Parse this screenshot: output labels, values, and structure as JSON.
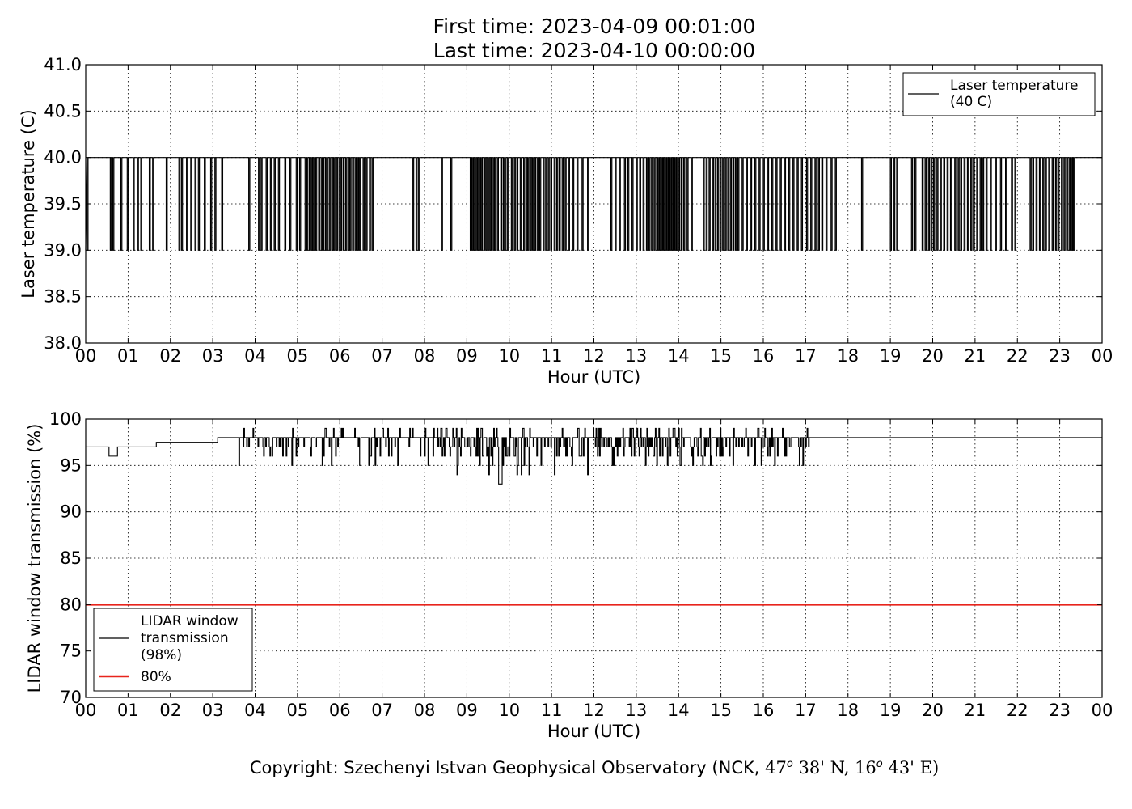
{
  "header": {
    "first_time": "First time: 2023-04-09 00:01:00",
    "last_time": "Last time: 2023-04-10 00:00:00"
  },
  "footer": {
    "copyright_prefix": "Copyright: Szechenyi Istvan Geophysical Observatory (NCK, ",
    "lat_deg": "47",
    "lat_min": "38' N, ",
    "lon_deg": "16",
    "lon_min": "43' E)",
    "degree_mark": "o"
  },
  "chart_data": [
    {
      "type": "line",
      "xlabel": "Hour (UTC)",
      "ylabel": "Laser temperature (C)",
      "xlim": [
        0,
        24
      ],
      "ylim": [
        38.0,
        41.0
      ],
      "x_ticks": [
        "00",
        "01",
        "02",
        "03",
        "04",
        "05",
        "06",
        "07",
        "08",
        "09",
        "10",
        "11",
        "12",
        "13",
        "14",
        "15",
        "16",
        "17",
        "18",
        "19",
        "20",
        "21",
        "22",
        "23",
        "00"
      ],
      "y_ticks": [
        "38.0",
        "38.5",
        "39.0",
        "39.5",
        "40.0",
        "40.5",
        "41.0"
      ],
      "grid": true,
      "legend_placement": "top-right",
      "legend": [
        "Laser temperature",
        "(40 C)"
      ],
      "series": [
        {
          "color": "#000000",
          "baseline": 40.0,
          "dip_value": 39.0,
          "dips_hours": [
            0.03,
            0.58,
            0.64,
            0.83,
            0.98,
            1.12,
            1.22,
            1.3,
            1.5,
            1.58,
            1.9,
            2.2,
            2.26,
            2.38,
            2.48,
            2.58,
            2.66,
            2.8,
            2.95,
            3.05,
            3.21,
            3.85,
            4.08,
            4.14,
            4.26,
            4.36,
            4.45,
            4.55,
            4.7,
            4.82,
            4.97,
            5.05,
            5.18,
            5.22,
            5.28,
            5.33,
            5.38,
            5.43,
            5.5,
            5.56,
            5.6,
            5.66,
            5.7,
            5.76,
            5.82,
            5.86,
            5.92,
            5.98,
            6.02,
            6.08,
            6.14,
            6.2,
            6.24,
            6.3,
            6.36,
            6.42,
            6.46,
            6.55,
            6.62,
            6.7,
            6.76,
            7.72,
            7.8,
            7.86,
            8.4,
            8.62,
            9.08,
            9.12,
            9.16,
            9.2,
            9.25,
            9.3,
            9.34,
            9.4,
            9.45,
            9.5,
            9.55,
            9.62,
            9.66,
            9.72,
            9.8,
            9.86,
            9.9,
            9.96,
            10.05,
            10.12,
            10.18,
            10.26,
            10.34,
            10.4,
            10.44,
            10.5,
            10.55,
            10.6,
            10.66,
            10.72,
            10.8,
            10.86,
            10.92,
            10.98,
            11.06,
            11.12,
            11.18,
            11.25,
            11.32,
            11.4,
            11.5,
            11.6,
            11.72,
            11.85,
            12.4,
            12.5,
            12.6,
            12.72,
            12.8,
            12.9,
            13.0,
            13.08,
            13.16,
            13.24,
            13.3,
            13.36,
            13.42,
            13.48,
            13.52,
            13.56,
            13.6,
            13.64,
            13.68,
            13.72,
            13.76,
            13.8,
            13.84,
            13.88,
            13.92,
            13.96,
            14.0,
            14.06,
            14.12,
            14.2,
            14.3,
            14.58,
            14.65,
            14.72,
            14.8,
            14.86,
            14.92,
            14.98,
            15.04,
            15.1,
            15.16,
            15.22,
            15.28,
            15.34,
            15.4,
            15.5,
            15.6,
            15.7,
            15.8,
            15.9,
            16.0,
            16.1,
            16.2,
            16.3,
            16.4,
            16.5,
            16.6,
            16.7,
            16.8,
            16.9,
            17.02,
            17.12,
            17.22,
            17.3,
            17.38,
            17.48,
            17.6,
            17.7,
            18.32,
            19.0,
            19.08,
            19.15,
            19.5,
            19.58,
            19.75,
            19.82,
            19.9,
            19.96,
            20.02,
            20.1,
            20.18,
            20.26,
            20.34,
            20.42,
            20.52,
            20.6,
            20.66,
            20.74,
            20.82,
            20.9,
            20.96,
            21.04,
            21.12,
            21.18,
            21.26,
            21.36,
            21.48,
            21.6,
            21.72,
            21.86,
            21.94,
            22.3,
            22.36,
            22.44,
            22.52,
            22.6,
            22.66,
            22.74,
            22.82,
            22.9,
            22.96,
            23.04,
            23.1,
            23.16,
            23.22,
            23.28,
            23.32
          ]
        }
      ]
    },
    {
      "type": "line",
      "xlabel": "Hour (UTC)",
      "ylabel": "LIDAR window transmission (%)",
      "xlim": [
        0,
        24
      ],
      "ylim": [
        70,
        100
      ],
      "x_ticks": [
        "00",
        "01",
        "02",
        "03",
        "04",
        "05",
        "06",
        "07",
        "08",
        "09",
        "10",
        "11",
        "12",
        "13",
        "14",
        "15",
        "16",
        "17",
        "18",
        "19",
        "20",
        "21",
        "22",
        "23",
        "00"
      ],
      "y_ticks": [
        "70",
        "75",
        "80",
        "85",
        "90",
        "95",
        "100"
      ],
      "grid": true,
      "legend_placement": "bottom-left",
      "legend": [
        "LIDAR window",
        "transmission",
        "(98%)",
        "80%"
      ],
      "series": [
        {
          "color": "#000000",
          "segments": [
            [
              0,
              97
            ],
            [
              0.55,
              96
            ],
            [
              0.75,
              97
            ],
            [
              1.5,
              97
            ],
            [
              1.65,
              97.5
            ],
            [
              3.1,
              98
            ],
            [
              4.1,
              98
            ],
            [
              17.1,
              98
            ],
            [
              24,
              98
            ]
          ],
          "noisy_range_hours": [
            0.5,
            17.1
          ],
          "min_value": 93,
          "max_value": 99
        },
        {
          "color": "#e8241c",
          "value": 80
        }
      ]
    }
  ]
}
